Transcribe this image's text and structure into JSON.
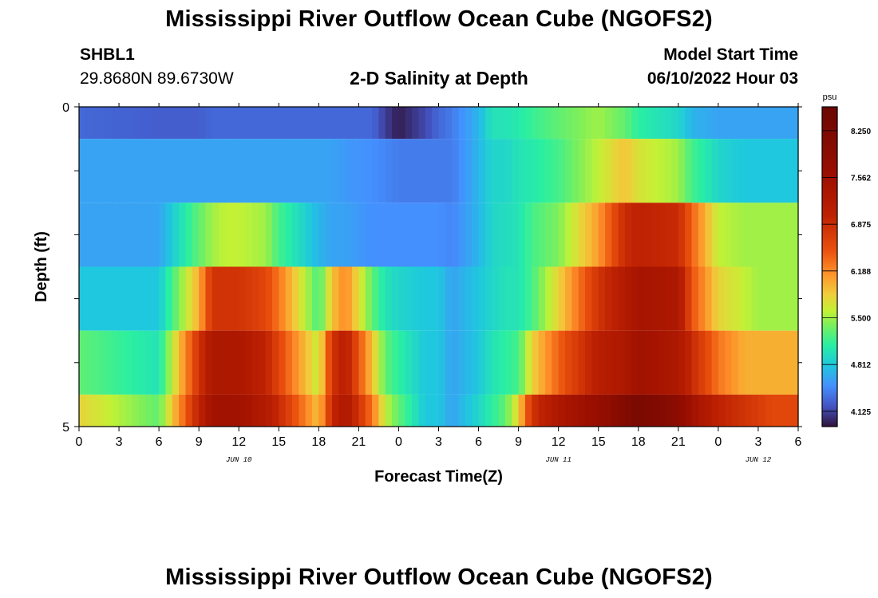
{
  "header": {
    "title": "Mississippi River Outflow Ocean Cube (NGOFS2)",
    "station_id": "SHBL1",
    "station_coords": "29.8680N  89.6730W",
    "subtitle": "2-D Salinity at Depth",
    "model_start_label": "Model Start Time",
    "model_start_value": "06/10/2022 Hour 03"
  },
  "footer": {
    "title": "Mississippi River Outflow Ocean Cube (NGOFS2)"
  },
  "chart_data": {
    "type": "heatmap",
    "title": "2-D Salinity at Depth",
    "xlabel": "Forecast Time(Z)",
    "ylabel": "Depth (ft)",
    "x_tick_labels": [
      "0",
      "3",
      "6",
      "9",
      "12",
      "15",
      "18",
      "21",
      "0",
      "3",
      "6",
      "9",
      "12",
      "15",
      "18",
      "21",
      "0",
      "3",
      "6"
    ],
    "y_tick_labels": [
      "0",
      "5"
    ],
    "ylim": [
      0,
      5
    ],
    "date_labels": [
      {
        "text": "JUN 10",
        "at_tick": 4
      },
      {
        "text": "JUN 11",
        "at_tick": 12
      },
      {
        "text": "JUN 12",
        "at_tick": 17
      }
    ],
    "hours": [
      0,
      6,
      9,
      10,
      11,
      12,
      14,
      15,
      18,
      19,
      20,
      22,
      23,
      24,
      26,
      27,
      28,
      30,
      31,
      32,
      33,
      34,
      36,
      39,
      41,
      42,
      45,
      46,
      48,
      50,
      51,
      52,
      54
    ],
    "rows": [
      {
        "depth_top": 0,
        "depth_bottom": 0.5,
        "values": [
          4.3,
          4.25,
          4.25,
          4.3,
          4.3,
          4.3,
          4.3,
          4.3,
          4.3,
          4.3,
          4.3,
          4.3,
          4.1,
          3.95,
          4.15,
          4.3,
          4.4,
          4.7,
          5.0,
          5.0,
          5.05,
          5.15,
          5.3,
          5.5,
          5.3,
          5.1,
          4.9,
          4.7,
          4.6,
          4.6,
          4.6,
          4.6,
          4.6
        ]
      },
      {
        "depth_top": 0.5,
        "depth_bottom": 1.5,
        "values": [
          4.6,
          4.6,
          4.6,
          4.6,
          4.6,
          4.6,
          4.6,
          4.6,
          4.6,
          4.6,
          4.55,
          4.5,
          4.45,
          4.4,
          4.4,
          4.4,
          4.4,
          4.7,
          4.9,
          4.9,
          5.0,
          5.05,
          5.2,
          5.6,
          5.9,
          5.7,
          5.5,
          5.2,
          4.9,
          4.8,
          4.8,
          4.8,
          4.8
        ]
      },
      {
        "depth_top": 1.5,
        "depth_bottom": 2.5,
        "values": [
          4.6,
          4.6,
          5.3,
          5.5,
          5.6,
          5.6,
          5.5,
          5.2,
          4.7,
          4.6,
          4.6,
          4.5,
          4.5,
          4.5,
          4.5,
          4.5,
          4.45,
          4.7,
          4.9,
          4.95,
          5.0,
          5.2,
          5.4,
          6.1,
          6.9,
          7.0,
          6.9,
          6.4,
          5.6,
          5.5,
          5.5,
          5.5,
          5.5
        ]
      },
      {
        "depth_top": 2.5,
        "depth_bottom": 3.5,
        "values": [
          4.8,
          4.8,
          6.0,
          6.8,
          6.8,
          6.8,
          6.6,
          6.3,
          5.2,
          5.9,
          6.2,
          5.3,
          5.0,
          4.9,
          4.8,
          4.8,
          4.6,
          4.8,
          4.9,
          5.0,
          5.0,
          5.2,
          5.8,
          6.8,
          7.2,
          7.4,
          7.3,
          6.5,
          5.8,
          5.6,
          5.5,
          5.5,
          5.5
        ]
      },
      {
        "depth_top": 3.5,
        "depth_bottom": 4.5,
        "values": [
          5.3,
          5.0,
          6.8,
          7.3,
          7.3,
          7.3,
          7.0,
          6.6,
          5.6,
          6.8,
          7.1,
          5.9,
          5.3,
          5.1,
          4.8,
          4.8,
          4.6,
          4.8,
          5.0,
          5.1,
          5.2,
          5.8,
          6.4,
          7.1,
          7.3,
          7.5,
          7.3,
          6.9,
          6.3,
          6.0,
          6.0,
          6.0,
          6.0
        ]
      },
      {
        "depth_top": 4.5,
        "depth_bottom": 5,
        "values": [
          5.8,
          5.3,
          7.0,
          7.5,
          7.5,
          7.5,
          7.2,
          6.9,
          5.9,
          6.9,
          7.3,
          6.3,
          5.6,
          5.3,
          4.8,
          4.8,
          4.6,
          4.9,
          5.1,
          5.3,
          5.8,
          6.8,
          7.3,
          7.7,
          8.1,
          8.3,
          7.9,
          7.5,
          7.0,
          6.8,
          6.7,
          6.6,
          6.6
        ]
      }
    ],
    "colorbar": {
      "unit": "psu",
      "min": 3.9,
      "max": 8.6,
      "tick_labels": [
        "8.250",
        "7.562",
        "6.875",
        "6.188",
        "5.500",
        "4.812",
        "4.125"
      ],
      "tick_values": [
        8.25,
        7.562,
        6.875,
        6.188,
        5.5,
        4.812,
        4.125
      ],
      "stops": [
        {
          "v": 3.9,
          "c": "#30123b"
        },
        {
          "v": 4.2,
          "c": "#4454c4"
        },
        {
          "v": 4.5,
          "c": "#4490fe"
        },
        {
          "v": 4.8,
          "c": "#1fc8de"
        },
        {
          "v": 5.1,
          "c": "#29efa2"
        },
        {
          "v": 5.4,
          "c": "#7def5a"
        },
        {
          "v": 5.6,
          "c": "#c3f135"
        },
        {
          "v": 5.85,
          "c": "#f0cc3a"
        },
        {
          "v": 6.15,
          "c": "#fe922a"
        },
        {
          "v": 6.5,
          "c": "#ea4f0d"
        },
        {
          "v": 7.0,
          "c": "#be2102"
        },
        {
          "v": 7.6,
          "c": "#9b0f00"
        },
        {
          "v": 8.6,
          "c": "#6a0703"
        }
      ]
    }
  }
}
